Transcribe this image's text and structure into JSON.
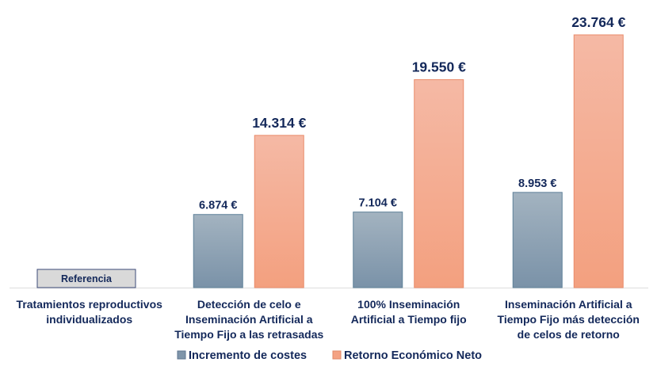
{
  "chart_data": {
    "type": "bar",
    "categories": [
      [
        "Tratamientos reproductivos",
        "individualizados"
      ],
      [
        "Detección de celo e",
        "Inseminación Artificial a",
        "Tiempo Fijo a las retrasadas"
      ],
      [
        "100% Inseminación",
        "Artificial a Tiempo fijo"
      ],
      [
        "Inseminación Artificial a",
        "Tiempo Fijo más detección",
        "de celos de retorno"
      ]
    ],
    "reference_label": "Referencia",
    "series": [
      {
        "name": "Incremento de costes",
        "values": [
          null,
          6874,
          7104,
          8953
        ],
        "labels": [
          "",
          "6.874 €",
          "7.104 €",
          "8.953 €"
        ],
        "color": "#8097ab"
      },
      {
        "name": "Retorno Económico Neto",
        "values": [
          null,
          14314,
          19550,
          23764
        ],
        "labels": [
          "",
          "14.314 €",
          "19.550 €",
          "23.764 €"
        ],
        "color": "#f4a283"
      }
    ],
    "ylim": [
      0,
      24000
    ],
    "grid": false,
    "legend": "bottom",
    "xlabel": "",
    "ylabel": ""
  }
}
